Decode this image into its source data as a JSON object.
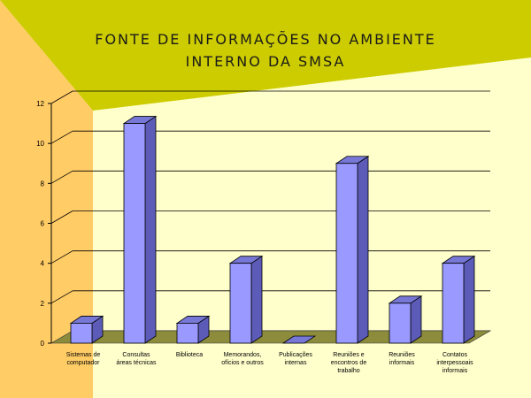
{
  "slide": {
    "title_line1": "FONTE DE INFORMAÇÕES NO AMBIENTE",
    "title_line2": "INTERNO DA SMSA"
  },
  "colors": {
    "background": "#FFFFCC",
    "banner": "#CCCC00",
    "left_panel": "#FFCC66",
    "bar_front": "#9999FF",
    "bar_side": "#5C5CB8",
    "bar_top": "#7777D6",
    "floor": "#8C8C3C"
  },
  "chart_data": {
    "type": "bar",
    "title": "FONTE DE INFORMAÇÕES NO AMBIENTE INTERNO DA SMSA",
    "categories": [
      [
        "Sistemas de",
        "computador"
      ],
      [
        "Consultas",
        "áreas técnicas"
      ],
      [
        "Biblioteca"
      ],
      [
        "Memorandos,",
        "ofícios e outros"
      ],
      [
        "Publicações",
        "internas"
      ],
      [
        "Reuniões e",
        "encontros de",
        "trabalho"
      ],
      [
        "Reuniões",
        "informais"
      ],
      [
        "Contatos",
        "interpessoais",
        "informais"
      ]
    ],
    "values": [
      1,
      11,
      1,
      4,
      0,
      9,
      2,
      4
    ],
    "ylim": [
      0,
      12
    ],
    "yticks": [
      0,
      2,
      4,
      6,
      8,
      10,
      12
    ],
    "grid": true,
    "legend": "none"
  }
}
